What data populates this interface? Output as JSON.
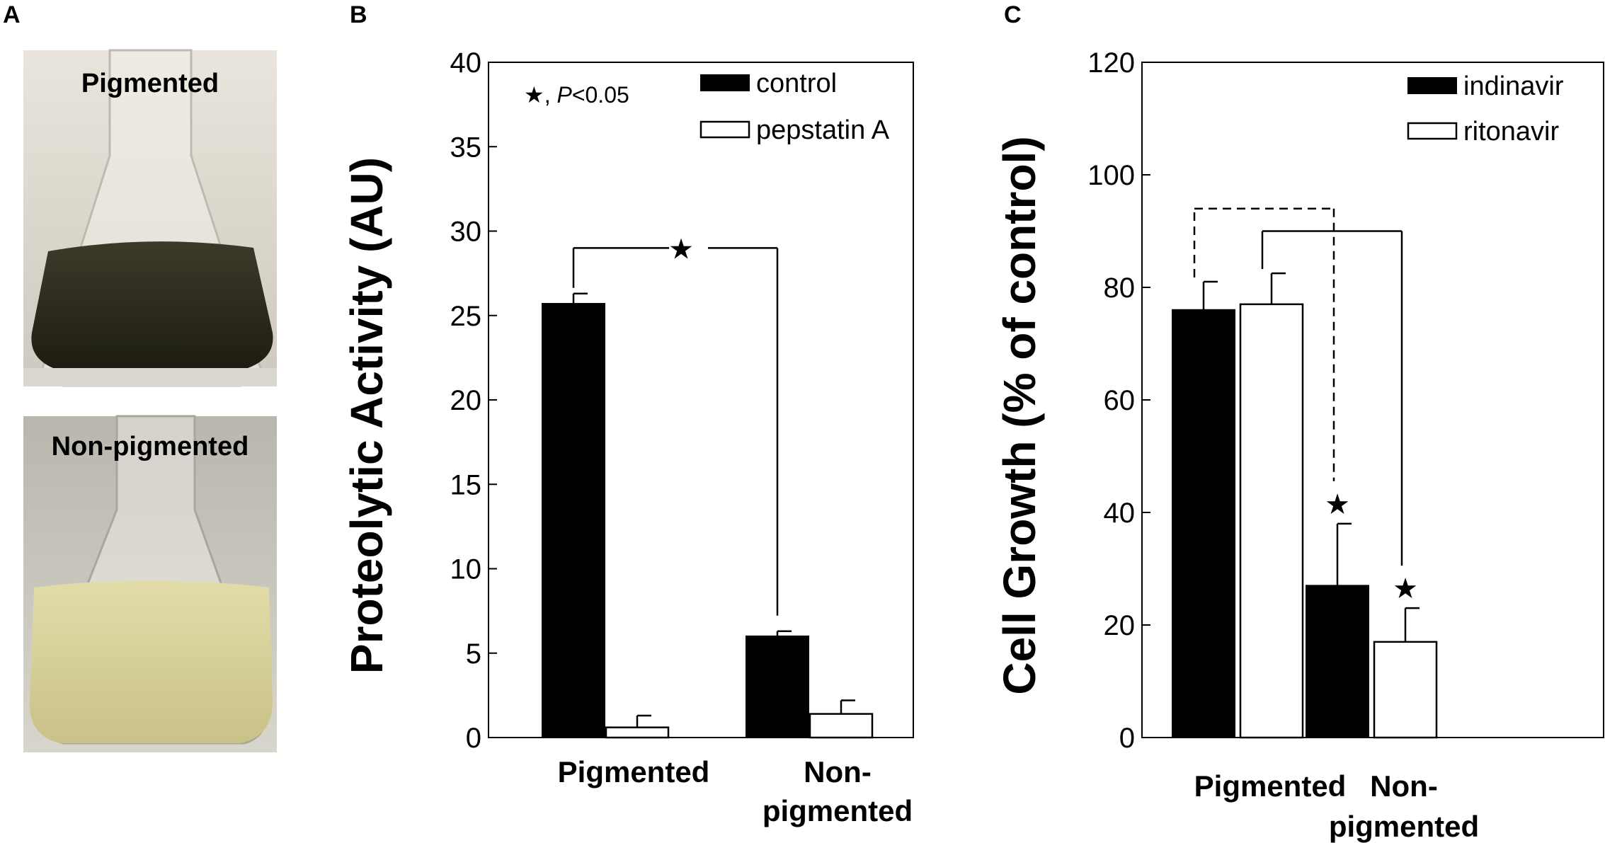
{
  "panels": {
    "a": {
      "letter": "A",
      "photos": [
        {
          "label": "Pigmented",
          "liquid_color": "#2e2c1e"
        },
        {
          "label": "Non-pigmented",
          "liquid_color": "#ddd69c"
        }
      ]
    },
    "b": {
      "letter": "B"
    },
    "c": {
      "letter": "C"
    }
  },
  "chart_data": [
    {
      "type": "bar",
      "panel": "B",
      "ylabel": "Proteolytic Activity (AU)",
      "xlabel": "",
      "ylim": [
        0,
        40
      ],
      "yticks": [
        0,
        5,
        10,
        15,
        20,
        25,
        30,
        35,
        40
      ],
      "categories": [
        "Pigmented",
        "Non-\npigmented"
      ],
      "series": [
        {
          "name": "control",
          "fill": "black",
          "values": [
            25.7,
            6.0
          ],
          "errors": [
            0.6,
            0.3
          ]
        },
        {
          "name": "pepstatin A",
          "fill": "white",
          "values": [
            0.6,
            1.4
          ],
          "errors": [
            0.7,
            0.8
          ]
        }
      ],
      "annotation": {
        "star": "★",
        "text": ", ",
        "p_italic": "P",
        "p_rest": "<0.05"
      },
      "significance": [
        {
          "from": [
            "Pigmented",
            "control"
          ],
          "to": [
            "Non-\npigmented",
            "control"
          ],
          "y": 29,
          "style": "solid",
          "marker": "★"
        }
      ],
      "legend_position": "top-right"
    },
    {
      "type": "bar",
      "panel": "C",
      "ylabel": "Cell Growth (% of control)",
      "xlabel": "",
      "ylim": [
        0,
        120
      ],
      "yticks": [
        0,
        20,
        40,
        60,
        80,
        100,
        120
      ],
      "categories": [
        "Pigmented",
        "Non-\npigmented"
      ],
      "series": [
        {
          "name": "indinavir",
          "fill": "black",
          "values": [
            76,
            27
          ],
          "errors": [
            5,
            11
          ],
          "star": [
            false,
            true
          ]
        },
        {
          "name": "ritonavir",
          "fill": "white",
          "values": [
            77,
            17
          ],
          "errors": [
            5.5,
            6
          ],
          "star": [
            false,
            true
          ]
        }
      ],
      "significance": [
        {
          "from": [
            "Pigmented",
            "indinavir"
          ],
          "to": [
            "Non-\npigmented",
            "indinavir"
          ],
          "y": 94,
          "style": "dashed"
        },
        {
          "from": [
            "Pigmented",
            "ritonavir"
          ],
          "to": [
            "Non-\npigmented",
            "ritonavir"
          ],
          "y": 90,
          "style": "solid"
        }
      ],
      "star_marker": "★",
      "legend_position": "top-right"
    }
  ]
}
